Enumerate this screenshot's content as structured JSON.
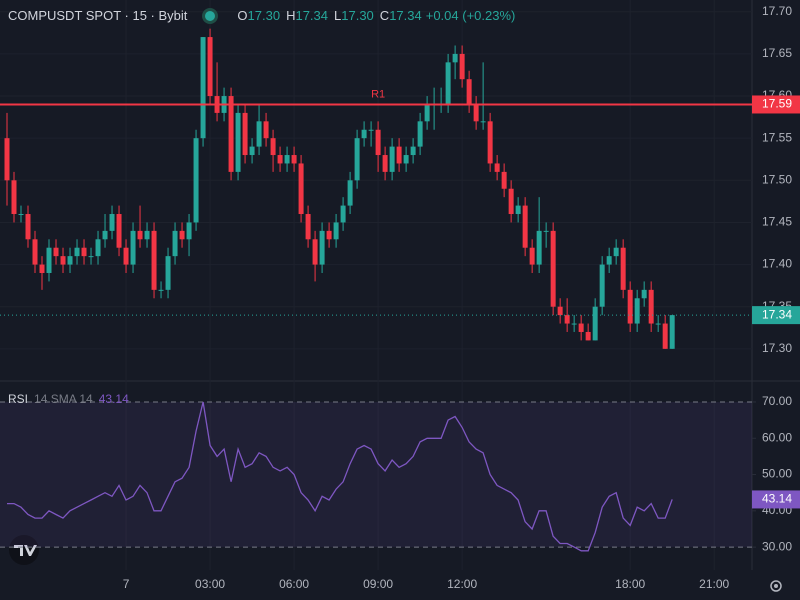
{
  "chart_data": [
    {
      "type": "candlestick",
      "title": "COMPUSDT SPOT · 15 · Bybit",
      "ohlc": [
        {
          "key": "O",
          "value": 17.3,
          "label": "17.30"
        },
        {
          "key": "H",
          "value": 17.34,
          "label": "17.34"
        },
        {
          "key": "L",
          "value": 17.3,
          "label": "17.30"
        },
        {
          "key": "C",
          "value": 17.34,
          "label": "17.34"
        }
      ],
      "change": "+0.04 (+0.23%)",
      "up_color": "#26a69a",
      "down_color": "#f23645",
      "candles": [
        [
          17.55,
          17.58,
          17.47,
          17.5
        ],
        [
          17.5,
          17.51,
          17.45,
          17.46
        ],
        [
          17.46,
          17.47,
          17.45,
          17.46
        ],
        [
          17.46,
          17.47,
          17.42,
          17.43
        ],
        [
          17.43,
          17.44,
          17.39,
          17.4
        ],
        [
          17.4,
          17.41,
          17.37,
          17.39
        ],
        [
          17.39,
          17.43,
          17.38,
          17.42
        ],
        [
          17.42,
          17.43,
          17.4,
          17.41
        ],
        [
          17.41,
          17.42,
          17.39,
          17.4
        ],
        [
          17.4,
          17.42,
          17.39,
          17.41
        ],
        [
          17.41,
          17.43,
          17.4,
          17.42
        ],
        [
          17.42,
          17.43,
          17.4,
          17.41
        ],
        [
          17.41,
          17.42,
          17.4,
          17.41
        ],
        [
          17.41,
          17.44,
          17.4,
          17.43
        ],
        [
          17.43,
          17.46,
          17.42,
          17.44
        ],
        [
          17.44,
          17.47,
          17.43,
          17.46
        ],
        [
          17.46,
          17.47,
          17.41,
          17.42
        ],
        [
          17.42,
          17.43,
          17.39,
          17.4
        ],
        [
          17.4,
          17.45,
          17.39,
          17.44
        ],
        [
          17.44,
          17.47,
          17.42,
          17.43
        ],
        [
          17.43,
          17.45,
          17.42,
          17.44
        ],
        [
          17.44,
          17.45,
          17.36,
          17.37
        ],
        [
          17.37,
          17.38,
          17.36,
          17.37
        ],
        [
          17.37,
          17.42,
          17.36,
          17.41
        ],
        [
          17.41,
          17.45,
          17.4,
          17.44
        ],
        [
          17.44,
          17.45,
          17.42,
          17.43
        ],
        [
          17.43,
          17.46,
          17.41,
          17.45
        ],
        [
          17.45,
          17.56,
          17.44,
          17.55
        ],
        [
          17.55,
          17.67,
          17.54,
          17.67
        ],
        [
          17.67,
          17.68,
          17.59,
          17.6
        ],
        [
          17.6,
          17.64,
          17.57,
          17.58
        ],
        [
          17.58,
          17.61,
          17.57,
          17.6
        ],
        [
          17.6,
          17.61,
          17.5,
          17.51
        ],
        [
          17.51,
          17.59,
          17.5,
          17.58
        ],
        [
          17.58,
          17.59,
          17.52,
          17.53
        ],
        [
          17.53,
          17.55,
          17.52,
          17.54
        ],
        [
          17.54,
          17.59,
          17.53,
          17.57
        ],
        [
          17.57,
          17.58,
          17.54,
          17.55
        ],
        [
          17.55,
          17.56,
          17.51,
          17.53
        ],
        [
          17.53,
          17.54,
          17.51,
          17.52
        ],
        [
          17.52,
          17.54,
          17.51,
          17.53
        ],
        [
          17.53,
          17.54,
          17.51,
          17.52
        ],
        [
          17.52,
          17.53,
          17.45,
          17.46
        ],
        [
          17.46,
          17.47,
          17.42,
          17.43
        ],
        [
          17.43,
          17.44,
          17.38,
          17.4
        ],
        [
          17.4,
          17.45,
          17.39,
          17.44
        ],
        [
          17.44,
          17.45,
          17.42,
          17.43
        ],
        [
          17.43,
          17.46,
          17.42,
          17.45
        ],
        [
          17.45,
          17.48,
          17.44,
          17.47
        ],
        [
          17.47,
          17.51,
          17.46,
          17.5
        ],
        [
          17.5,
          17.56,
          17.49,
          17.55
        ],
        [
          17.55,
          17.57,
          17.54,
          17.56
        ],
        [
          17.56,
          17.57,
          17.54,
          17.56
        ],
        [
          17.56,
          17.57,
          17.51,
          17.53
        ],
        [
          17.53,
          17.54,
          17.5,
          17.51
        ],
        [
          17.51,
          17.55,
          17.5,
          17.54
        ],
        [
          17.54,
          17.55,
          17.51,
          17.52
        ],
        [
          17.52,
          17.54,
          17.51,
          17.53
        ],
        [
          17.53,
          17.55,
          17.52,
          17.54
        ],
        [
          17.54,
          17.58,
          17.53,
          17.57
        ],
        [
          17.57,
          17.6,
          17.56,
          17.59
        ],
        [
          17.59,
          17.61,
          17.56,
          17.59
        ],
        [
          17.59,
          17.61,
          17.58,
          17.59
        ],
        [
          17.59,
          17.65,
          17.58,
          17.64
        ],
        [
          17.64,
          17.66,
          17.62,
          17.65
        ],
        [
          17.65,
          17.66,
          17.61,
          17.62
        ],
        [
          17.62,
          17.63,
          17.58,
          17.59
        ],
        [
          17.59,
          17.6,
          17.56,
          17.57
        ],
        [
          17.57,
          17.64,
          17.56,
          17.57
        ],
        [
          17.57,
          17.58,
          17.51,
          17.52
        ],
        [
          17.52,
          17.53,
          17.5,
          17.51
        ],
        [
          17.51,
          17.52,
          17.48,
          17.49
        ],
        [
          17.49,
          17.5,
          17.45,
          17.46
        ],
        [
          17.46,
          17.48,
          17.45,
          17.47
        ],
        [
          17.47,
          17.48,
          17.41,
          17.42
        ],
        [
          17.42,
          17.43,
          17.39,
          17.4
        ],
        [
          17.4,
          17.48,
          17.39,
          17.44
        ],
        [
          17.44,
          17.45,
          17.42,
          17.44
        ],
        [
          17.44,
          17.45,
          17.34,
          17.35
        ],
        [
          17.35,
          17.36,
          17.33,
          17.34
        ],
        [
          17.34,
          17.36,
          17.32,
          17.33
        ],
        [
          17.33,
          17.34,
          17.32,
          17.33
        ],
        [
          17.33,
          17.34,
          17.31,
          17.32
        ],
        [
          17.32,
          17.33,
          17.31,
          17.31
        ],
        [
          17.31,
          17.36,
          17.31,
          17.35
        ],
        [
          17.35,
          17.41,
          17.34,
          17.4
        ],
        [
          17.4,
          17.42,
          17.39,
          17.41
        ],
        [
          17.41,
          17.43,
          17.4,
          17.42
        ],
        [
          17.42,
          17.43,
          17.36,
          17.37
        ],
        [
          17.37,
          17.38,
          17.32,
          17.33
        ],
        [
          17.33,
          17.37,
          17.32,
          17.36
        ],
        [
          17.36,
          17.38,
          17.35,
          17.37
        ],
        [
          17.37,
          17.38,
          17.32,
          17.33
        ],
        [
          17.33,
          17.34,
          17.32,
          17.33
        ],
        [
          17.33,
          17.34,
          17.3,
          17.3
        ],
        [
          17.3,
          17.34,
          17.3,
          17.34
        ]
      ],
      "xlim": [
        -1,
        106.4
      ],
      "xticks": [
        {
          "value": 17,
          "label": "7"
        },
        {
          "value": 29,
          "label": "03:00"
        },
        {
          "value": 41,
          "label": "06:00"
        },
        {
          "value": 53,
          "label": "09:00"
        },
        {
          "value": 65,
          "label": "12:00"
        },
        {
          "value": 89,
          "label": "18:00"
        },
        {
          "value": 101,
          "label": "21:00"
        }
      ],
      "ylim": [
        17.263,
        17.714
      ],
      "yticks": [
        {
          "value": 17.3,
          "label": "17.30"
        },
        {
          "value": 17.35,
          "label": "17.35"
        },
        {
          "value": 17.4,
          "label": "17.40"
        },
        {
          "value": 17.45,
          "label": "17.45"
        },
        {
          "value": 17.5,
          "label": "17.50"
        },
        {
          "value": 17.55,
          "label": "17.55"
        },
        {
          "value": 17.6,
          "label": "17.60"
        },
        {
          "value": 17.65,
          "label": "17.65"
        },
        {
          "value": 17.7,
          "label": "17.70"
        }
      ],
      "levels": [
        {
          "name": "R1",
          "value": 17.59,
          "label": "17.59",
          "color": "#f23645",
          "at": 53
        }
      ],
      "last_price": {
        "value": 17.34,
        "label": "17.34",
        "color": "#26a69a"
      }
    },
    {
      "type": "line",
      "title": "RSI",
      "subtitle": "14 SMA 14",
      "color": "#7e57c2",
      "values": [
        42,
        42,
        41,
        39,
        38,
        38,
        40,
        39,
        38,
        40,
        41,
        42,
        43,
        44,
        45,
        44,
        47,
        43,
        44,
        47,
        45,
        40,
        40,
        44,
        48,
        49,
        52,
        62,
        70,
        58,
        55,
        57,
        48,
        57,
        52,
        53,
        56,
        55,
        52,
        51,
        52,
        50,
        45,
        43,
        40,
        44,
        43,
        46,
        48,
        53,
        57,
        58,
        57,
        53,
        51,
        54,
        52,
        53,
        55,
        59,
        60,
        60,
        60,
        65,
        66,
        63,
        59,
        57,
        56,
        50,
        47,
        46,
        45,
        43,
        37,
        35,
        40,
        40,
        33,
        31,
        31,
        30,
        29,
        29,
        34,
        41,
        44,
        45,
        38,
        36,
        41,
        40,
        42,
        38,
        38,
        43.14
      ],
      "last_label": "43.14",
      "ylim": [
        23.7,
        75.5
      ],
      "yticks": [
        {
          "value": 30,
          "label": "30.00"
        },
        {
          "value": 40,
          "label": "40.00"
        },
        {
          "value": 50,
          "label": "50.00"
        },
        {
          "value": 60,
          "label": "60.00"
        },
        {
          "value": 70,
          "label": "70.00"
        }
      ],
      "band": [
        30,
        70
      ]
    }
  ]
}
